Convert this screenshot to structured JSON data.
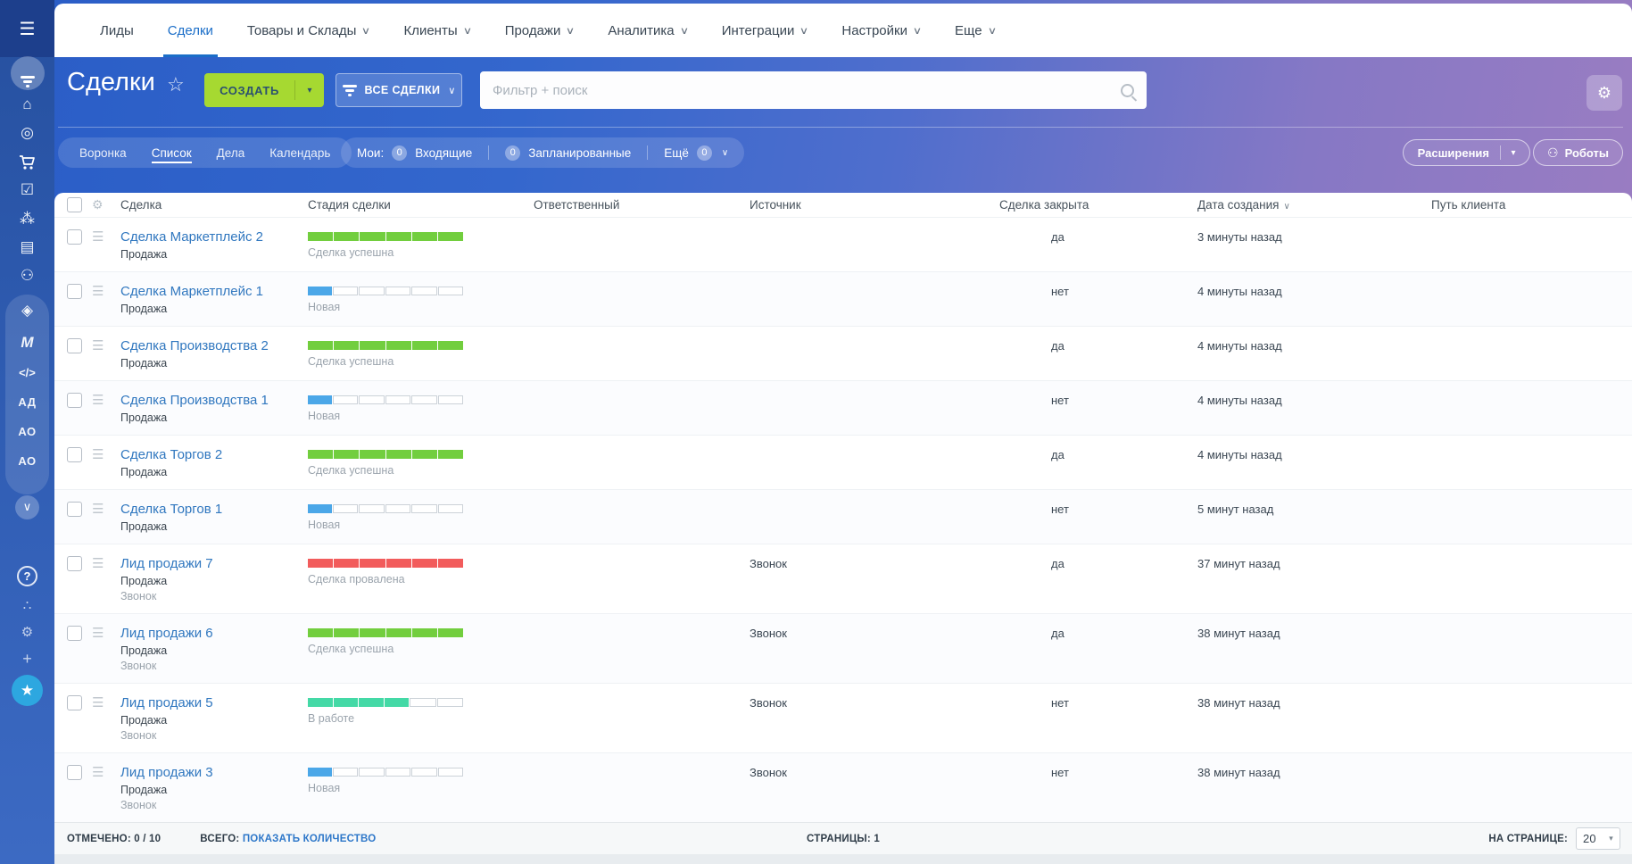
{
  "icons": {
    "menu": "☰",
    "drag": "☰",
    "gear": "⚙",
    "star_outline": "☆",
    "star": "★",
    "caret_down": "∨",
    "caret_small": "▾",
    "home": "⌂",
    "target": "◎",
    "tasks": "☑",
    "network": "⁂",
    "idcard": "▤",
    "robot": "⚇",
    "box": "◈",
    "m_logo": "M",
    "code": "</>",
    "help": "?",
    "share": "∴",
    "plus": "+",
    "chevron": "∨",
    "search": "⌕"
  },
  "sidebar": {
    "label_ad": "АД",
    "label_ao1": "АО",
    "label_ao2": "АО"
  },
  "nav": {
    "items": [
      {
        "label": "Лиды",
        "caret": false
      },
      {
        "label": "Сделки",
        "caret": false
      },
      {
        "label": "Товары и Склады",
        "caret": true
      },
      {
        "label": "Клиенты",
        "caret": true
      },
      {
        "label": "Продажи",
        "caret": true
      },
      {
        "label": "Аналитика",
        "caret": true
      },
      {
        "label": "Интеграции",
        "caret": true
      },
      {
        "label": "Настройки",
        "caret": true
      },
      {
        "label": "Еще",
        "caret": true
      }
    ]
  },
  "header": {
    "title": "Сделки",
    "create_label": "СОЗДАТЬ",
    "all_deals_label": "ВСЕ СДЕЛКИ",
    "search_placeholder": "Фильтр + поиск"
  },
  "toolbar": {
    "views": [
      "Воронка",
      "Список",
      "Дела",
      "Календарь"
    ],
    "active_view": "Список",
    "my_label": "Мои:",
    "inbox_count": "0",
    "inbox_label": "Входящие",
    "planned_count": "0",
    "planned_label": "Запланированные",
    "more_label": "Ещё",
    "more_count": "0",
    "extensions_label": "Расширения",
    "robots_label": "Роботы"
  },
  "table": {
    "columns": [
      "Сделка",
      "Стадия сделки",
      "Ответственный",
      "Источник",
      "Сделка закрыта",
      "Дата создания",
      "Путь клиента"
    ],
    "stage_colors": {
      "success": "#72ce3e",
      "new": "#4ba7e8",
      "failed": "#f25c5c",
      "progress": "#44d9a6"
    },
    "rows": [
      {
        "name": "Сделка Маркетплейс 2",
        "pipeline": "Продажа",
        "stage": {
          "label": "Сделка успешна",
          "color": "#72ce3e",
          "filled": 6,
          "total": 6
        },
        "source": "",
        "closed": "да",
        "created": "3 минуты назад",
        "path": ""
      },
      {
        "name": "Сделка Маркетплейс 1",
        "pipeline": "Продажа",
        "stage": {
          "label": "Новая",
          "color": "#4ba7e8",
          "filled": 1,
          "total": 6
        },
        "source": "",
        "closed": "нет",
        "created": "4 минуты назад",
        "path": ""
      },
      {
        "name": "Сделка Производства 2",
        "pipeline": "Продажа",
        "stage": {
          "label": "Сделка успешна",
          "color": "#72ce3e",
          "filled": 6,
          "total": 6
        },
        "source": "",
        "closed": "да",
        "created": "4 минуты назад",
        "path": ""
      },
      {
        "name": "Сделка Производства 1",
        "pipeline": "Продажа",
        "stage": {
          "label": "Новая",
          "color": "#4ba7e8",
          "filled": 1,
          "total": 6
        },
        "source": "",
        "closed": "нет",
        "created": "4 минуты назад",
        "path": ""
      },
      {
        "name": "Сделка Торгов 2",
        "pipeline": "Продажа",
        "stage": {
          "label": "Сделка успешна",
          "color": "#72ce3e",
          "filled": 6,
          "total": 6
        },
        "source": "",
        "closed": "да",
        "created": "4 минуты назад",
        "path": ""
      },
      {
        "name": "Сделка Торгов 1",
        "pipeline": "Продажа",
        "stage": {
          "label": "Новая",
          "color": "#4ba7e8",
          "filled": 1,
          "total": 6
        },
        "source": "",
        "closed": "нет",
        "created": "5 минут назад",
        "path": ""
      },
      {
        "name": "Лид продажи 7",
        "pipeline": "Продажа",
        "tag": "Звонок",
        "stage": {
          "label": "Сделка провалена",
          "color": "#f25c5c",
          "filled": 6,
          "total": 6
        },
        "source": "Звонок",
        "closed": "да",
        "created": "37 минут назад",
        "path": ""
      },
      {
        "name": "Лид продажи 6",
        "pipeline": "Продажа",
        "tag": "Звонок",
        "stage": {
          "label": "Сделка успешна",
          "color": "#72ce3e",
          "filled": 6,
          "total": 6
        },
        "source": "Звонок",
        "closed": "да",
        "created": "38 минут назад",
        "path": ""
      },
      {
        "name": "Лид продажи 5",
        "pipeline": "Продажа",
        "tag": "Звонок",
        "stage": {
          "label": "В работе",
          "color": "#44d9a6",
          "filled": 4,
          "total": 6
        },
        "source": "Звонок",
        "closed": "нет",
        "created": "38 минут назад",
        "path": ""
      },
      {
        "name": "Лид продажи 3",
        "pipeline": "Продажа",
        "tag": "Звонок",
        "stage": {
          "label": "Новая",
          "color": "#4ba7e8",
          "filled": 1,
          "total": 6
        },
        "source": "Звонок",
        "closed": "нет",
        "created": "38 минут назад",
        "path": ""
      }
    ]
  },
  "footer": {
    "checked_label": "ОТМЕЧЕНО:",
    "checked_value": "0 / 10",
    "total_label": "ВСЕГО:",
    "total_link": "ПОКАЗАТЬ КОЛИЧЕСТВО",
    "pages_label": "СТРАНИЦЫ:",
    "pages_value": "1",
    "per_page_label": "НА СТРАНИЦЕ:",
    "per_page_value": "20"
  },
  "colors": {
    "accent_blue": "#1b6ec8",
    "create_green": "#a6d931",
    "link_blue": "#3077bf",
    "sidebar_blue": "#2f5cb2",
    "notify_circle": "#2da7e0"
  }
}
